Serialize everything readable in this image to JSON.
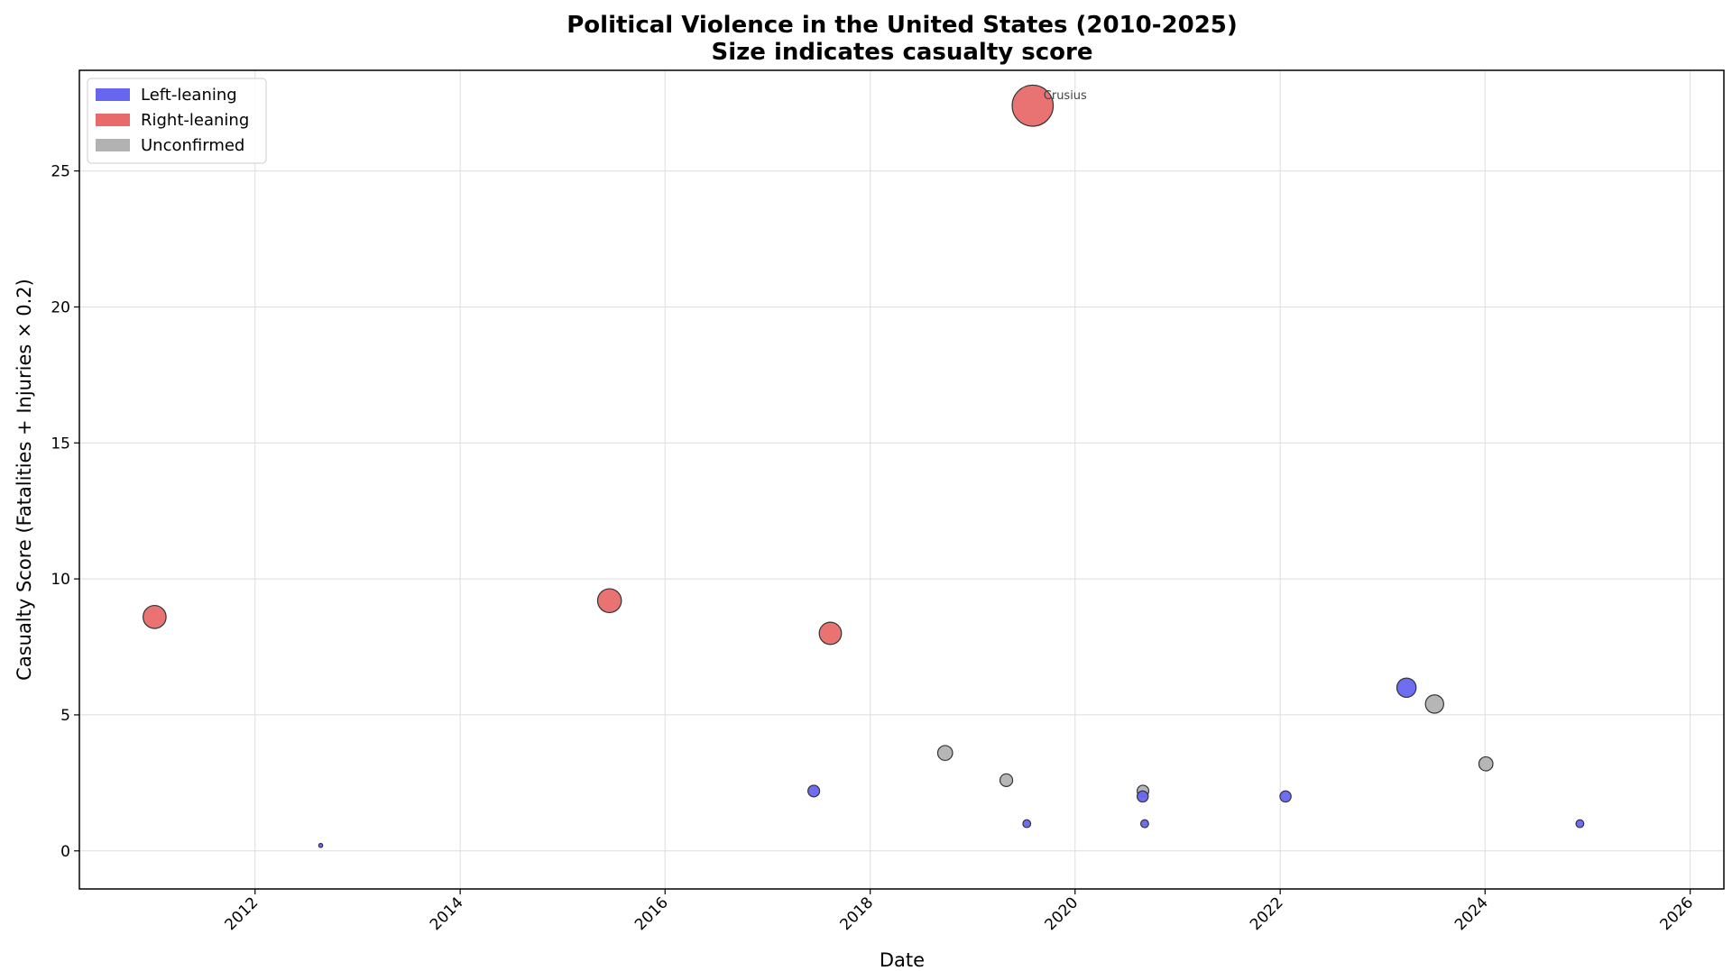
{
  "chart_data": {
    "type": "scatter",
    "title": "Political Violence in the United States (2010-2025)",
    "subtitle": "Size indicates casualty score",
    "xlabel": "Date",
    "ylabel": "Casualty Score (Fatalities + Injuries × 0.2)",
    "xlim": [
      "2010-04-15",
      "2026-05-01"
    ],
    "ylim": [
      -1.4,
      28.7
    ],
    "x_ticks": [
      "2012",
      "2014",
      "2016",
      "2018",
      "2020",
      "2022",
      "2024",
      "2026"
    ],
    "y_ticks": [
      0,
      5,
      10,
      15,
      20,
      25
    ],
    "grid": true,
    "legend_position": "top-left",
    "legend": [
      {
        "key": "left",
        "label": "Left-leaning",
        "color": "#6666f0"
      },
      {
        "key": "right",
        "label": "Right-leaning",
        "color": "#e86a6a"
      },
      {
        "key": "unconfirmed",
        "label": "Unconfirmed",
        "color": "#b2b2b2"
      }
    ],
    "points": [
      {
        "date": "2011-01-08",
        "score": 8.6,
        "group": "right"
      },
      {
        "date": "2012-08-22",
        "score": 0.2,
        "group": "left"
      },
      {
        "date": "2015-06-17",
        "score": 9.2,
        "group": "right"
      },
      {
        "date": "2017-06-14",
        "score": 2.2,
        "group": "left"
      },
      {
        "date": "2017-08-12",
        "score": 8.0,
        "group": "right"
      },
      {
        "date": "2018-09-25",
        "score": 3.6,
        "group": "unconfirmed"
      },
      {
        "date": "2019-05-01",
        "score": 2.6,
        "group": "unconfirmed"
      },
      {
        "date": "2019-07-13",
        "score": 1.0,
        "group": "left"
      },
      {
        "date": "2019-08-03",
        "score": 27.4,
        "group": "right",
        "label": "Crusius"
      },
      {
        "date": "2020-08-29",
        "score": 2.0,
        "group": "left"
      },
      {
        "date": "2020-08-30",
        "score": 2.2,
        "group": "unconfirmed"
      },
      {
        "date": "2020-09-05",
        "score": 1.0,
        "group": "left"
      },
      {
        "date": "2022-01-20",
        "score": 2.0,
        "group": "left"
      },
      {
        "date": "2023-03-27",
        "score": 6.0,
        "group": "left"
      },
      {
        "date": "2023-07-05",
        "score": 5.4,
        "group": "unconfirmed"
      },
      {
        "date": "2024-01-04",
        "score": 3.2,
        "group": "unconfirmed"
      },
      {
        "date": "2024-12-04",
        "score": 1.0,
        "group": "left"
      }
    ]
  }
}
